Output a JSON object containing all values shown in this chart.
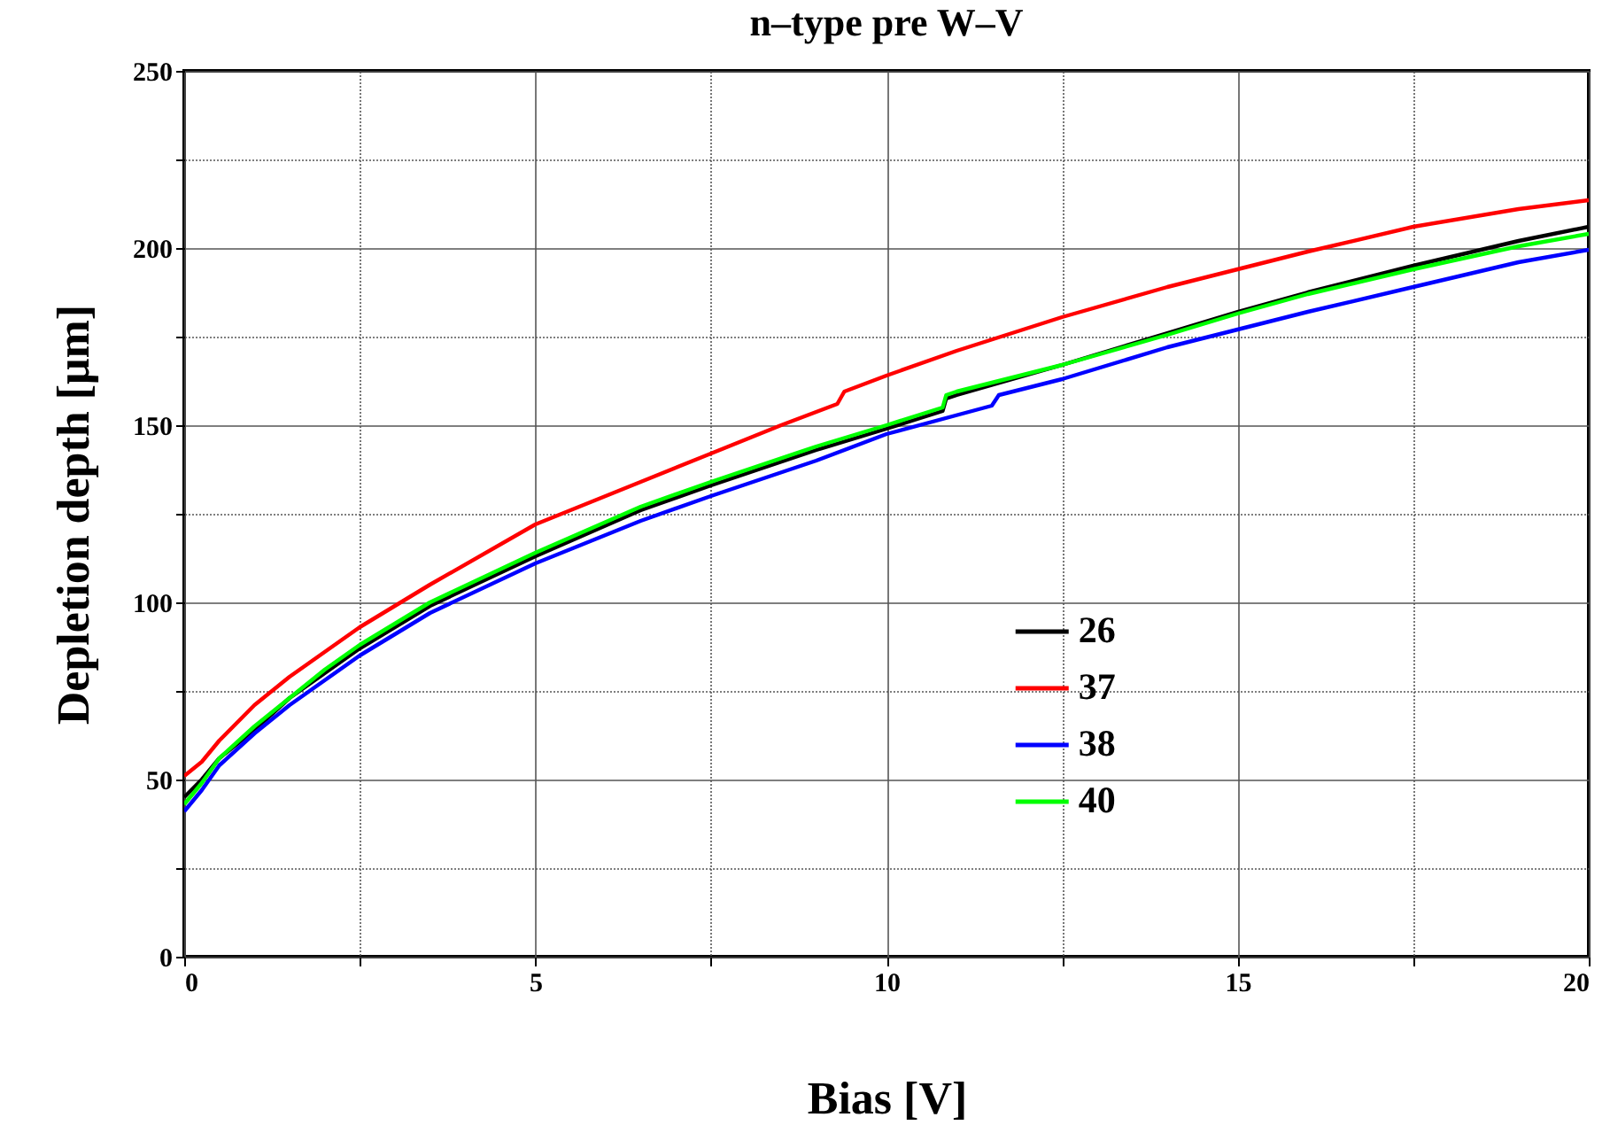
{
  "chart_data": {
    "type": "line",
    "title": "n–type pre W–V",
    "xlabel": "Bias [V]",
    "ylabel": "Depletion depth [μm]",
    "xlim": [
      0,
      20
    ],
    "ylim": [
      0,
      250
    ],
    "xticks": [
      0,
      {
        "value": 2.5,
        "label": null
      },
      5,
      {
        "value": 7.5,
        "label": null
      },
      10,
      {
        "value": 12.5,
        "label": null
      },
      15,
      {
        "value": 17.5,
        "label": null
      },
      20
    ],
    "yticks": [
      0,
      {
        "value": 25,
        "label": null
      },
      50,
      {
        "value": 75,
        "label": null
      },
      100,
      {
        "value": 125,
        "label": null
      },
      150,
      {
        "value": 175,
        "label": null
      },
      200,
      {
        "value": 225,
        "label": null
      },
      250
    ],
    "grid": true,
    "legend": "bottom right",
    "series": [
      {
        "name": "26",
        "color": "#000000",
        "x": [
          0,
          0.25,
          0.5,
          1,
          1.5,
          2,
          2.5,
          3.5,
          5,
          6.5,
          7.5,
          9,
          10,
          10.8,
          10.85,
          11,
          12.5,
          14,
          15,
          16,
          17.5,
          19,
          20
        ],
        "values": [
          45,
          50,
          56,
          64,
          73,
          80,
          87,
          99,
          113,
          126,
          133,
          143,
          149,
          154,
          157.5,
          158.5,
          167,
          176,
          182,
          187.5,
          195,
          202,
          206
        ]
      },
      {
        "name": "37",
        "color": "#ff0000",
        "x": [
          0,
          0.25,
          0.5,
          1,
          1.5,
          2,
          2.5,
          3.5,
          5,
          6.5,
          7.5,
          8.5,
          9.3,
          9.4,
          10,
          11,
          12.5,
          14,
          15,
          16,
          17.5,
          19,
          20
        ],
        "values": [
          51,
          55,
          61,
          71,
          79,
          86,
          93,
          105,
          122,
          134,
          142,
          150,
          156,
          159.5,
          164,
          171,
          180.5,
          189,
          194,
          199,
          206,
          211,
          213.5
        ]
      },
      {
        "name": "38",
        "color": "#0000ff",
        "x": [
          0,
          0.25,
          0.5,
          1,
          1.5,
          2,
          2.5,
          3.5,
          5,
          6.5,
          7.5,
          9,
          10,
          11.5,
          11.6,
          12.5,
          14,
          15,
          16,
          17.5,
          19,
          20
        ],
        "values": [
          41,
          47,
          54,
          63,
          71,
          78,
          85,
          97,
          111,
          123,
          130,
          140,
          147.5,
          155.5,
          158.5,
          163,
          172,
          177,
          182,
          189,
          196,
          199.5
        ]
      },
      {
        "name": "40",
        "color": "#00ff00",
        "x": [
          0,
          0.25,
          0.5,
          1,
          1.5,
          2,
          2.5,
          3.5,
          5,
          6.5,
          7.5,
          9,
          10,
          10.8,
          10.85,
          11,
          12.5,
          14,
          15,
          16,
          17.5,
          19,
          20
        ],
        "values": [
          43,
          49,
          56,
          65,
          73,
          81,
          88,
          100,
          114,
          127,
          134,
          144,
          150,
          155,
          158.5,
          159.5,
          167,
          175.5,
          181.5,
          187,
          194,
          200.5,
          204
        ]
      }
    ]
  }
}
